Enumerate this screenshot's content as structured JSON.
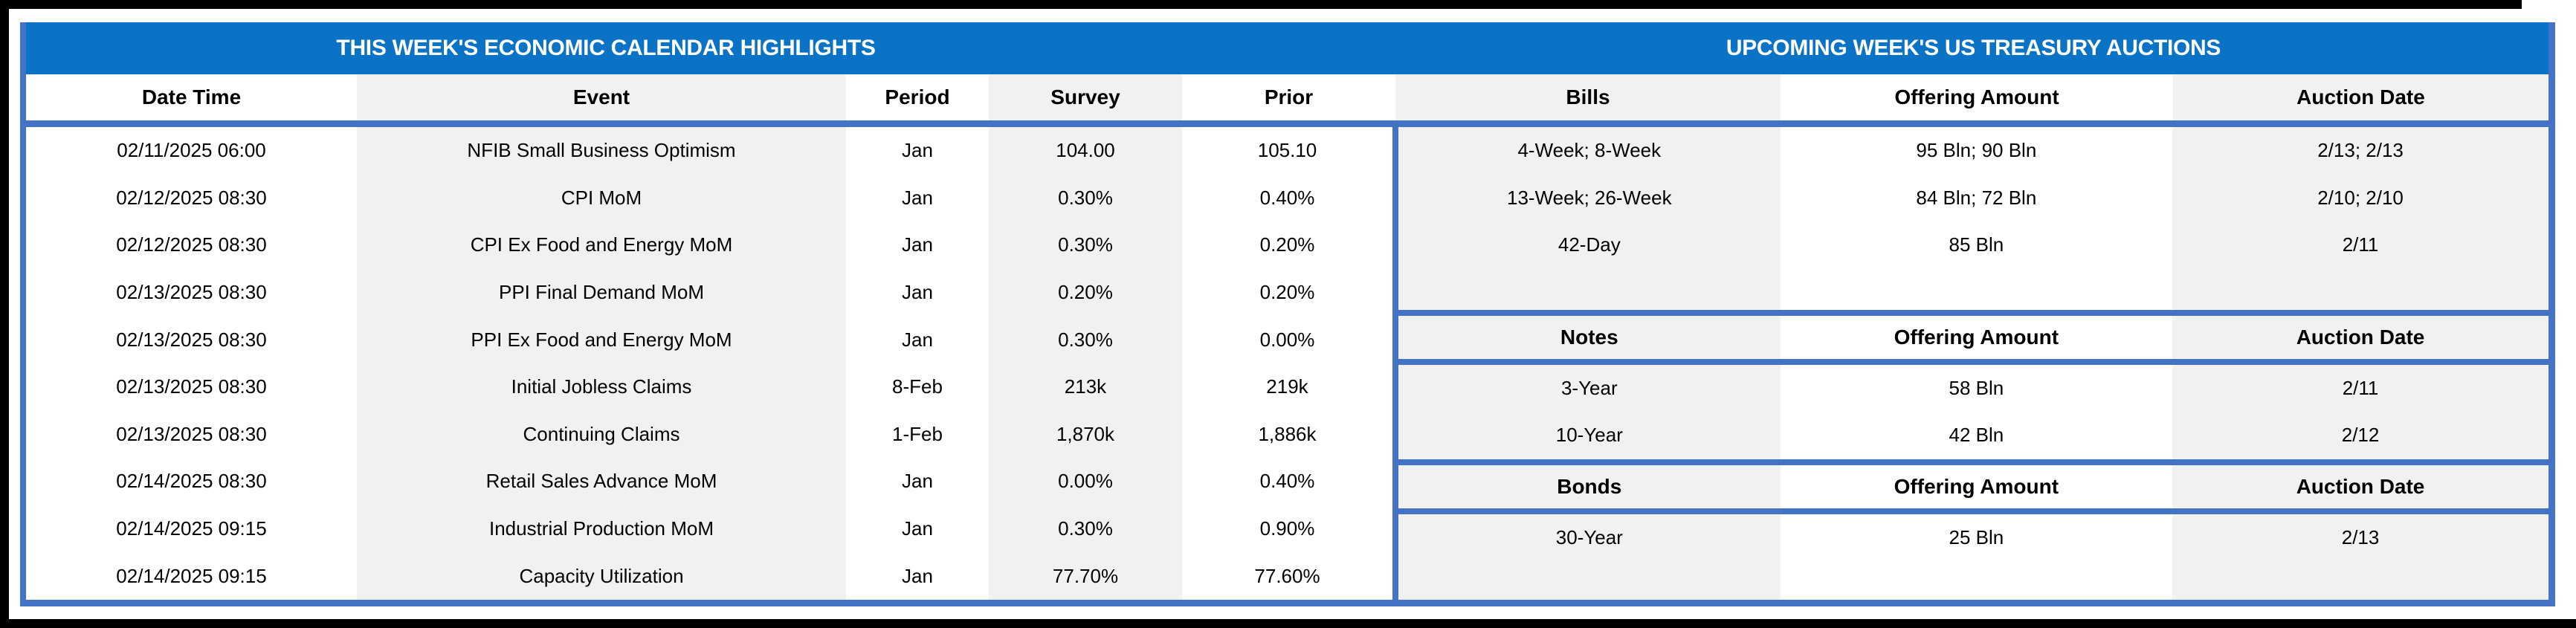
{
  "titles": {
    "left": "THIS WEEK'S ECONOMIC CALENDAR HIGHLIGHTS",
    "right": "UPCOMING WEEK'S US TREASURY AUCTIONS"
  },
  "economic_calendar": {
    "columns": [
      "Date Time",
      "Event",
      "Period",
      "Survey",
      "Prior"
    ],
    "rows": [
      [
        "02/11/2025 06:00",
        "NFIB Small Business Optimism",
        "Jan",
        "104.00",
        "105.10"
      ],
      [
        "02/12/2025 08:30",
        "CPI MoM",
        "Jan",
        "0.30%",
        "0.40%"
      ],
      [
        "02/12/2025 08:30",
        "CPI Ex Food and Energy MoM",
        "Jan",
        "0.30%",
        "0.20%"
      ],
      [
        "02/13/2025 08:30",
        "PPI Final Demand MoM",
        "Jan",
        "0.20%",
        "0.20%"
      ],
      [
        "02/13/2025 08:30",
        "PPI Ex Food and Energy MoM",
        "Jan",
        "0.30%",
        "0.00%"
      ],
      [
        "02/13/2025 08:30",
        "Initial Jobless Claims",
        "8-Feb",
        "213k",
        "219k"
      ],
      [
        "02/13/2025 08:30",
        "Continuing Claims",
        "1-Feb",
        "1,870k",
        "1,886k"
      ],
      [
        "02/14/2025 08:30",
        "Retail Sales Advance MoM",
        "Jan",
        "0.00%",
        "0.40%"
      ],
      [
        "02/14/2025 09:15",
        "Industrial Production MoM",
        "Jan",
        "0.30%",
        "0.90%"
      ],
      [
        "02/14/2025 09:15",
        "Capacity Utilization",
        "Jan",
        "77.70%",
        "77.60%"
      ]
    ]
  },
  "treasury_auctions": {
    "sections": [
      {
        "label": "Bills",
        "columns": [
          "Bills",
          "Offering Amount",
          "Auction Date"
        ],
        "rows": [
          [
            "4-Week; 8-Week",
            "95 Bln; 90 Bln",
            "2/13; 2/13"
          ],
          [
            "13-Week; 26-Week",
            "84 Bln; 72 Bln",
            "2/10; 2/10"
          ],
          [
            "42-Day",
            "85 Bln",
            "2/11"
          ]
        ]
      },
      {
        "label": "Notes",
        "columns": [
          "Notes",
          "Offering Amount",
          "Auction Date"
        ],
        "rows": [
          [
            "3-Year",
            "58 Bln",
            "2/11"
          ],
          [
            "10-Year",
            "42 Bln",
            "2/12"
          ]
        ]
      },
      {
        "label": "Bonds",
        "columns": [
          "Bonds",
          "Offering Amount",
          "Auction Date"
        ],
        "rows": [
          [
            "30-Year",
            "25 Bln",
            "2/13"
          ]
        ]
      }
    ]
  },
  "colors": {
    "title_bar": "#0B73C6",
    "table_border": "#4472C4",
    "alt_column_fill": "#F1F1F1",
    "outer_frame": "#000000"
  }
}
